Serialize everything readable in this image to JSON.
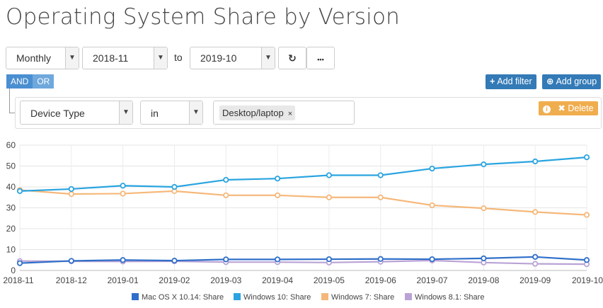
{
  "page": {
    "title": "Operating System Share by Version"
  },
  "filters": {
    "period": "Monthly",
    "from": "2018-11",
    "to_label": "to",
    "to": "2019-10",
    "refresh_icon": "refresh-icon",
    "more_label": "•••",
    "and_label": "AND",
    "or_label": "OR",
    "add_filter_label": "Add filter",
    "add_group_label": "Add group",
    "rule": {
      "field": "Device Type",
      "operator": "in",
      "values": [
        "Desktop/laptop"
      ],
      "delete_label": "Delete"
    }
  },
  "colors": {
    "mac": "#2f6fc9",
    "win10": "#2aa4e0",
    "win7": "#f5b87a",
    "win81": "#b9a3d6",
    "primary": "#337ab7",
    "warning": "#f0ad4e"
  },
  "chart_data": {
    "type": "line",
    "categories": [
      "2018-11",
      "2018-12",
      "2019-01",
      "2019-02",
      "2019-03",
      "2019-04",
      "2019-05",
      "2019-06",
      "2019-07",
      "2019-08",
      "2019-09",
      "2019-10"
    ],
    "ylim": [
      0,
      60
    ],
    "yticks": [
      0,
      10,
      20,
      30,
      40,
      50,
      60
    ],
    "grid": true,
    "legend_position": "bottom",
    "series": [
      {
        "name": "Mac OS X 10.14: Share",
        "color": "#2f6fc9",
        "values": [
          3.5,
          4.6,
          5.0,
          4.7,
          5.3,
          5.3,
          5.4,
          5.5,
          5.4,
          5.8,
          6.5,
          5.0
        ]
      },
      {
        "name": "Windows 10: Share",
        "color": "#2aa4e0",
        "values": [
          38.0,
          39.0,
          40.6,
          40.0,
          43.4,
          44.0,
          45.6,
          45.6,
          48.8,
          50.8,
          52.2,
          54.2
        ]
      },
      {
        "name": "Windows 7: Share",
        "color": "#f5b87a",
        "values": [
          38.5,
          36.6,
          36.8,
          38.0,
          36.0,
          36.0,
          35.0,
          35.0,
          31.2,
          29.8,
          28.0,
          26.6
        ]
      },
      {
        "name": "Windows 8.1: Share",
        "color": "#b9a3d6",
        "values": [
          4.5,
          4.4,
          4.3,
          4.4,
          4.0,
          4.0,
          3.8,
          4.2,
          4.8,
          3.8,
          3.2,
          3.0
        ]
      }
    ]
  }
}
